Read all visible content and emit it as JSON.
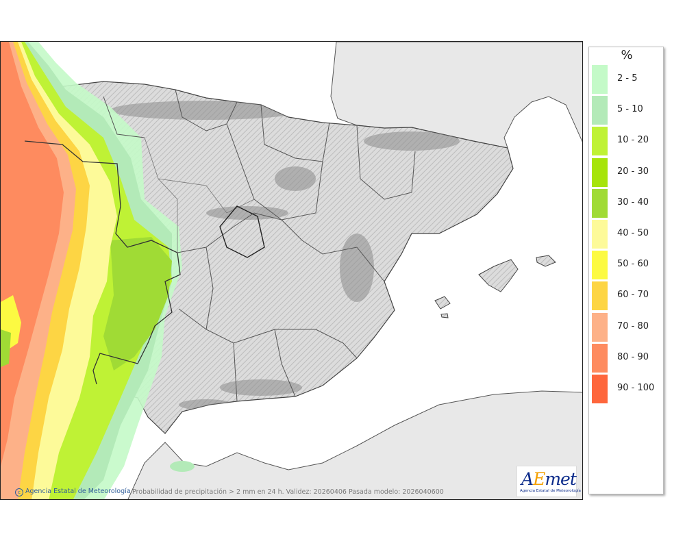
{
  "legend": {
    "title": "%",
    "items": [
      {
        "label": "2 - 5",
        "color": "#c4fac8"
      },
      {
        "label": "5 - 10",
        "color": "#b3eab8"
      },
      {
        "label": "10 - 20",
        "color": "#bff235"
      },
      {
        "label": "20 - 30",
        "color": "#a6e40a"
      },
      {
        "label": "30 - 40",
        "color": "#a0db35"
      },
      {
        "label": "40 - 50",
        "color": "#fdfa99"
      },
      {
        "label": "50 - 60",
        "color": "#fcfa42"
      },
      {
        "label": "60 - 70",
        "color": "#fdd544"
      },
      {
        "label": "70 - 80",
        "color": "#fdb188"
      },
      {
        "label": "80 - 90",
        "color": "#fe8b5f"
      },
      {
        "label": "90 - 100",
        "color": "#fe663c"
      }
    ]
  },
  "map": {
    "copyright": "Agencia Estatal de Meteorología",
    "caption": "Probabilidad de precipitación > 2 mm en 24 h. Validez: 20260406 Pasada modelo: 2026040600"
  },
  "logo": {
    "text_a": "A",
    "text_e": "E",
    "text_rest": "met",
    "subtitle": "Agencia Estatal de Meteorología"
  }
}
